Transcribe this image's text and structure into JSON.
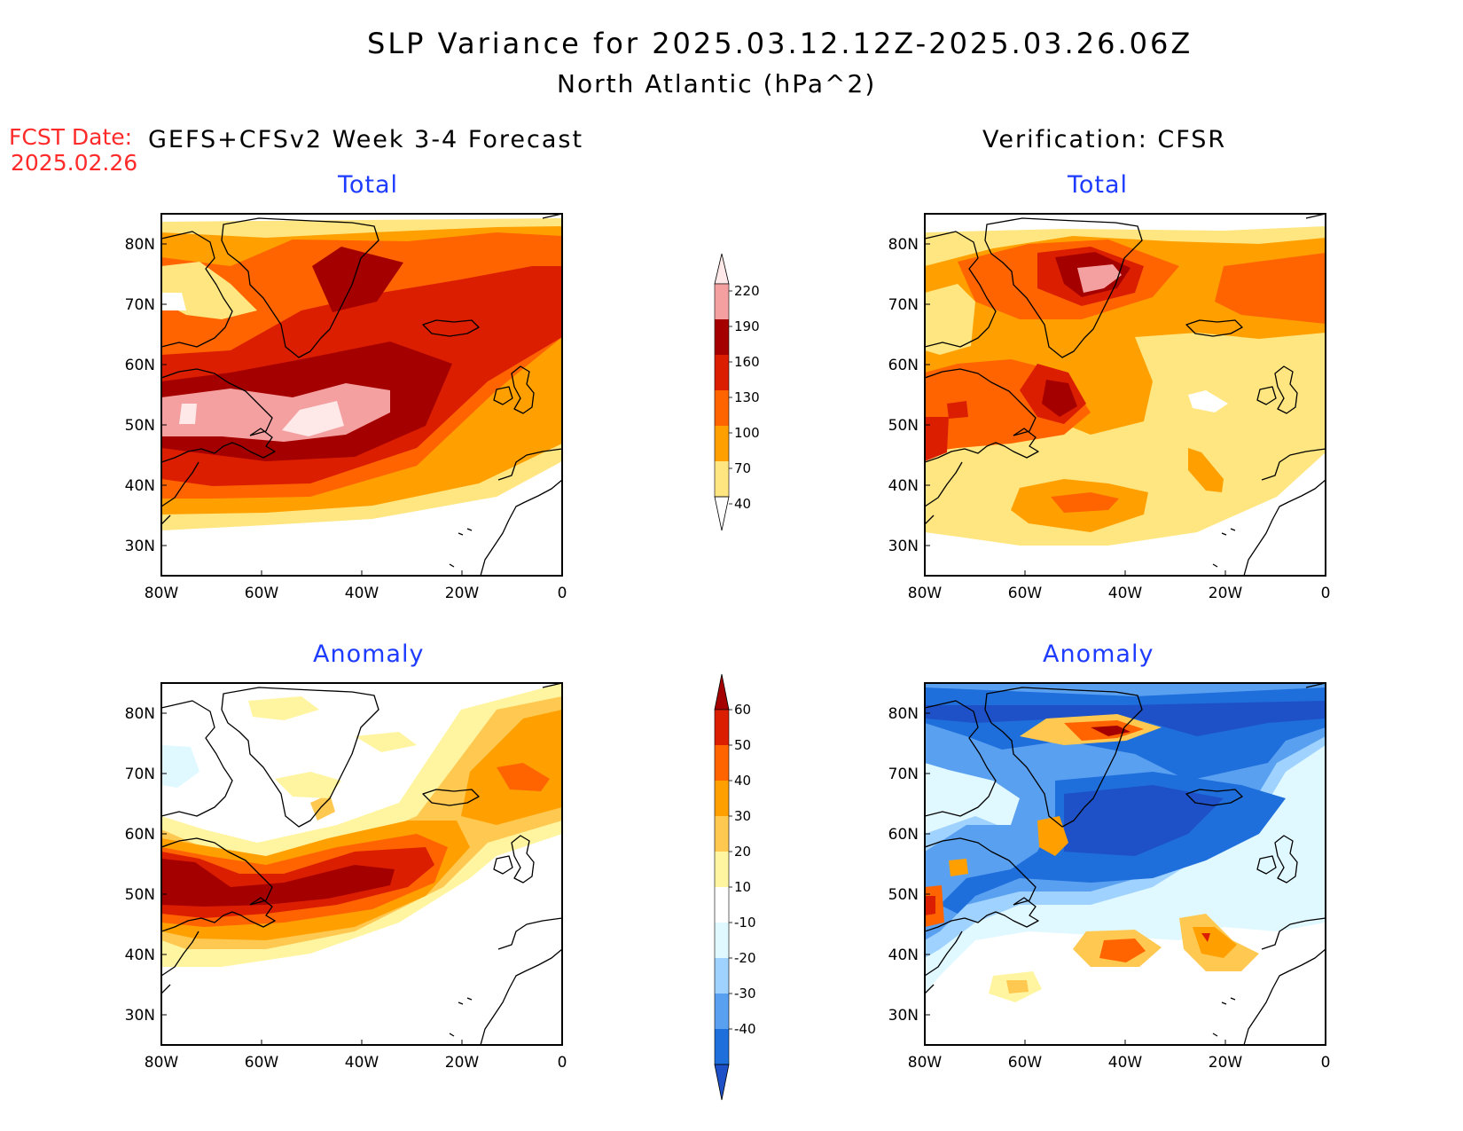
{
  "title": {
    "line1": "SLP Variance for 2025.03.12.12Z-2025.03.26.06Z",
    "line2": "North Atlantic (hPa^2)"
  },
  "fcst": {
    "label": "FCST Date:",
    "date": "2025.02.26"
  },
  "left_header": "GEFS+CFSv2 Week 3-4 Forecast",
  "right_header": "Verification: CFSR",
  "panels": {
    "fcst_total": {
      "title": "Total"
    },
    "verif_total": {
      "title": "Total"
    },
    "fcst_anom": {
      "title": "Anomaly"
    },
    "verif_anom": {
      "title": "Anomaly"
    }
  },
  "axes": {
    "lon_labels": [
      "80W",
      "60W",
      "40W",
      "20W",
      "0"
    ],
    "lat_labels": [
      "80N",
      "70N",
      "60N",
      "50N",
      "40N",
      "30N"
    ],
    "lon_range": [
      -80,
      0
    ],
    "lat_range": [
      25,
      85
    ]
  },
  "colorbar_total": {
    "levels": [
      "220",
      "190",
      "160",
      "130",
      "100",
      "70",
      "40"
    ],
    "colors": [
      "#ffe8e8",
      "#f4a0a0",
      "#a50000",
      "#dc1e00",
      "#ff6400",
      "#ffa000",
      "#ffe680"
    ]
  },
  "colorbar_anom": {
    "levels": [
      "60",
      "50",
      "40",
      "30",
      "20",
      "10",
      "-10",
      "-20",
      "-30",
      "-40"
    ],
    "colors": [
      "#a50000",
      "#dc1e00",
      "#ff6400",
      "#ffa000",
      "#ffc850",
      "#fff5a0",
      "#ffffff",
      "#e0f8ff",
      "#a0d2ff",
      "#5aa0f0",
      "#1e6edc",
      "#1e50c8"
    ]
  }
}
